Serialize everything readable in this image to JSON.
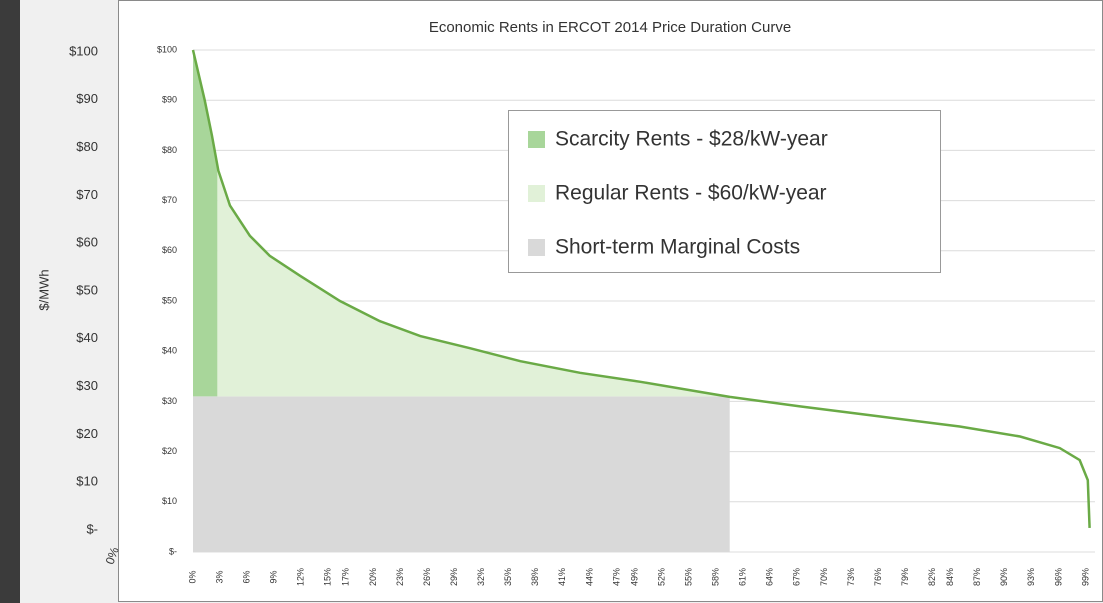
{
  "chart_data": [
    {
      "type": "line",
      "ylabel": "$/MWh",
      "categories": [
        "0%"
      ],
      "ylim": [
        0,
        100
      ],
      "yticks": [
        {
          "value": 100,
          "label": "$100"
        },
        {
          "value": 90,
          "label": "$90"
        },
        {
          "value": 80,
          "label": "$80"
        },
        {
          "value": 70,
          "label": "$70"
        },
        {
          "value": 60,
          "label": "$60"
        },
        {
          "value": 50,
          "label": "$50"
        },
        {
          "value": 40,
          "label": "$40"
        },
        {
          "value": 30,
          "label": "$30"
        },
        {
          "value": 20,
          "label": "$20"
        },
        {
          "value": 10,
          "label": "$10"
        },
        {
          "value": 0,
          "label": "$-"
        }
      ]
    },
    {
      "type": "line",
      "title": "Economic Rents in ERCOT 2014 Price Duration Curve",
      "x": [
        0,
        1.3,
        2.1,
        2.8,
        4.1,
        6.3,
        8.5,
        11.9,
        16.3,
        20.7,
        25.2,
        30.7,
        36.3,
        42.9,
        49.6,
        56.2,
        59.5,
        67.3,
        76.2,
        85,
        91.7,
        96.1,
        98.3,
        99.2,
        99.4
      ],
      "values": [
        100,
        90,
        83,
        76,
        69,
        63,
        59,
        55,
        50,
        46,
        43,
        40.6,
        38,
        35.7,
        33.9,
        31.9,
        30.9,
        29,
        27,
        25,
        23,
        20.7,
        18.3,
        14.3,
        4.8
      ],
      "color": "#6aaa46",
      "areas": [
        {
          "name": "Scarcity Rents - $28/kW-year",
          "color": "#a8d69a",
          "x": [
            0,
            2.7
          ],
          "bottom": 31
        },
        {
          "name": "Regular Rents - $60/kW-year",
          "color": "#e1f1d8",
          "x": [
            2.7,
            59.5
          ],
          "bottom": 31
        },
        {
          "name": "Short-term Marginal Costs",
          "color": "#d9d9d9",
          "x": [
            0,
            59.5
          ],
          "bottom": 0,
          "top": 31
        }
      ],
      "xlim": [
        0,
        100
      ],
      "xticks": [
        {
          "value": 0,
          "label": "0%"
        },
        {
          "value": 3,
          "label": "3%"
        },
        {
          "value": 6,
          "label": "6%"
        },
        {
          "value": 9,
          "label": "9%"
        },
        {
          "value": 12,
          "label": "12%"
        },
        {
          "value": 15,
          "label": "15%"
        },
        {
          "value": 17,
          "label": "17%"
        },
        {
          "value": 20,
          "label": "20%"
        },
        {
          "value": 23,
          "label": "23%"
        },
        {
          "value": 26,
          "label": "26%"
        },
        {
          "value": 29,
          "label": "29%"
        },
        {
          "value": 32,
          "label": "32%"
        },
        {
          "value": 35,
          "label": "35%"
        },
        {
          "value": 38,
          "label": "38%"
        },
        {
          "value": 41,
          "label": "41%"
        },
        {
          "value": 44,
          "label": "44%"
        },
        {
          "value": 47,
          "label": "47%"
        },
        {
          "value": 49,
          "label": "49%"
        },
        {
          "value": 52,
          "label": "52%"
        },
        {
          "value": 55,
          "label": "55%"
        },
        {
          "value": 58,
          "label": "58%"
        },
        {
          "value": 61,
          "label": "61%"
        },
        {
          "value": 64,
          "label": "64%"
        },
        {
          "value": 67,
          "label": "67%"
        },
        {
          "value": 70,
          "label": "70%"
        },
        {
          "value": 73,
          "label": "73%"
        },
        {
          "value": 76,
          "label": "76%"
        },
        {
          "value": 79,
          "label": "79%"
        },
        {
          "value": 82,
          "label": "82%"
        },
        {
          "value": 84,
          "label": "84%"
        },
        {
          "value": 87,
          "label": "87%"
        },
        {
          "value": 90,
          "label": "90%"
        },
        {
          "value": 93,
          "label": "93%"
        },
        {
          "value": 96,
          "label": "96%"
        },
        {
          "value": 99,
          "label": "99%"
        }
      ],
      "ylim": [
        0,
        100
      ],
      "yticks": [
        {
          "value": 100,
          "label": "$100"
        },
        {
          "value": 90,
          "label": "$90"
        },
        {
          "value": 80,
          "label": "$80"
        },
        {
          "value": 70,
          "label": "$70"
        },
        {
          "value": 60,
          "label": "$60"
        },
        {
          "value": 50,
          "label": "$50"
        },
        {
          "value": 40,
          "label": "$40"
        },
        {
          "value": 30,
          "label": "$30"
        },
        {
          "value": 20,
          "label": "$20"
        },
        {
          "value": 10,
          "label": "$10"
        },
        {
          "value": 0,
          "label": "$-"
        }
      ],
      "grid": true
    }
  ]
}
